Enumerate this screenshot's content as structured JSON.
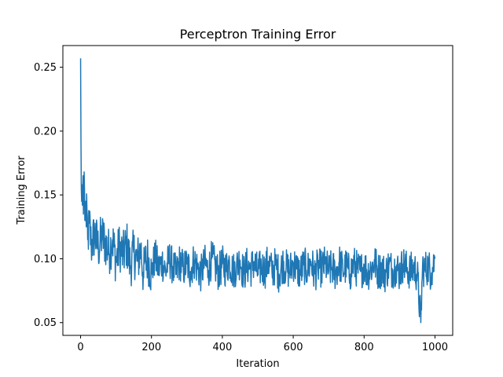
{
  "chart_data": {
    "type": "line",
    "title": "Perceptron Training Error",
    "xlabel": "Iteration",
    "ylabel": "Training Error",
    "xlim": [
      -50,
      1050
    ],
    "ylim": [
      0.04,
      0.267
    ],
    "x_ticks": [
      0,
      200,
      400,
      600,
      800,
      1000
    ],
    "x_tick_labels": [
      "0",
      "200",
      "400",
      "600",
      "800",
      "1000"
    ],
    "y_ticks": [
      0.05,
      0.1,
      0.15,
      0.2,
      0.25
    ],
    "y_tick_labels": [
      "0.05",
      "0.10",
      "0.15",
      "0.20",
      "0.25"
    ],
    "grid": false,
    "series": [
      {
        "name": "Training Error",
        "color": "#1f77b4",
        "x_step": 10,
        "x": [
          0,
          1,
          2,
          3,
          4,
          5,
          6,
          7,
          8,
          9,
          10,
          12,
          14,
          16,
          18,
          20,
          25,
          30,
          40,
          50,
          60,
          70,
          80,
          90,
          100,
          110,
          120,
          130,
          140,
          150,
          160,
          170,
          178,
          180,
          190,
          200,
          210,
          220,
          230,
          240,
          250,
          260,
          270,
          280,
          290,
          300,
          310,
          320,
          330,
          340,
          350,
          360,
          370,
          380,
          390,
          400,
          410,
          420,
          430,
          440,
          450,
          460,
          470,
          480,
          490,
          500,
          510,
          520,
          530,
          540,
          550,
          560,
          570,
          580,
          590,
          600,
          610,
          620,
          630,
          640,
          650,
          660,
          670,
          680,
          690,
          700,
          710,
          720,
          730,
          740,
          750,
          760,
          770,
          780,
          790,
          800,
          810,
          820,
          830,
          840,
          850,
          860,
          870,
          880,
          890,
          900,
          910,
          920,
          930,
          940,
          950,
          960,
          965,
          970,
          980,
          990,
          1000
        ],
        "y": [
          0.257,
          0.195,
          0.155,
          0.145,
          0.158,
          0.142,
          0.15,
          0.165,
          0.135,
          0.155,
          0.168,
          0.13,
          0.145,
          0.125,
          0.138,
          0.115,
          0.128,
          0.11,
          0.12,
          0.108,
          0.118,
          0.112,
          0.105,
          0.115,
          0.098,
          0.11,
          0.102,
          0.112,
          0.095,
          0.105,
          0.098,
          0.108,
          0.085,
          0.096,
          0.1,
          0.088,
          0.102,
          0.092,
          0.098,
          0.09,
          0.1,
          0.094,
          0.088,
          0.098,
          0.092,
          0.096,
          0.09,
          0.099,
          0.093,
          0.088,
          0.097,
          0.091,
          0.1,
          0.094,
          0.089,
          0.096,
          0.092,
          0.098,
          0.09,
          0.094,
          0.099,
          0.088,
          0.095,
          0.092,
          0.097,
          0.089,
          0.094,
          0.091,
          0.098,
          0.09,
          0.095,
          0.088,
          0.096,
          0.093,
          0.09,
          0.097,
          0.092,
          0.089,
          0.095,
          0.091,
          0.098,
          0.088,
          0.094,
          0.092,
          0.096,
          0.09,
          0.093,
          0.089,
          0.097,
          0.091,
          0.094,
          0.088,
          0.096,
          0.092,
          0.09,
          0.095,
          0.089,
          0.093,
          0.097,
          0.09,
          0.092,
          0.088,
          0.095,
          0.091,
          0.094,
          0.089,
          0.096,
          0.092,
          0.09,
          0.093,
          0.088,
          0.05,
          0.095,
          0.091,
          0.094,
          0.089,
          0.1
        ],
        "noise_amplitude": 0.015
      }
    ]
  }
}
